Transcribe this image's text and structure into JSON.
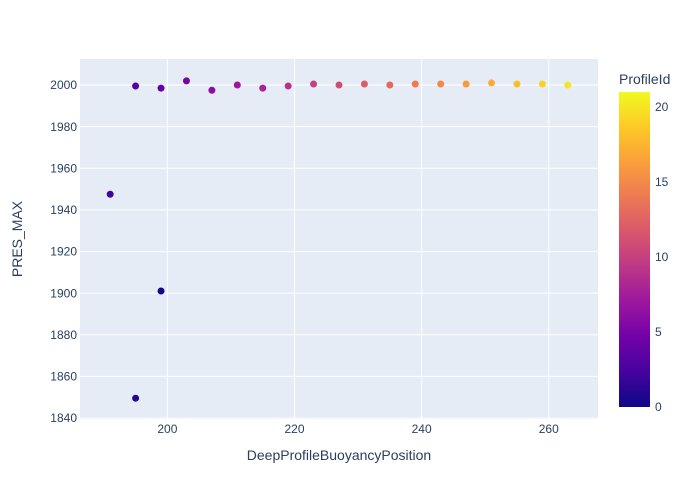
{
  "figure": {
    "background": "#ffffff",
    "plot_bgcolor": "#e5ecf6",
    "grid_color": "#ffffff",
    "font_color": "#2a3f5f"
  },
  "chart_data": {
    "type": "scatter",
    "title": "",
    "xlabel": "DeepProfileBuoyancyPosition",
    "ylabel": "PRES_MAX",
    "xlim": [
      186.25,
      267.75
    ],
    "ylim": [
      1839.5,
      2012.5
    ],
    "x_ticks": [
      200,
      220,
      240,
      260
    ],
    "y_ticks": [
      1840,
      1860,
      1880,
      1900,
      1920,
      1940,
      1960,
      1980,
      2000
    ],
    "grid": true,
    "legend_position": "colorbar-right",
    "marker_diameter_px": 7,
    "points": [
      {
        "x": 199,
        "y": 1901,
        "id": 0
      },
      {
        "x": 195,
        "y": 1849.5,
        "id": 1
      },
      {
        "x": 191,
        "y": 1947.5,
        "id": 2
      },
      {
        "x": 195,
        "y": 1999.5,
        "id": 3
      },
      {
        "x": 199,
        "y": 1998.5,
        "id": 4
      },
      {
        "x": 203,
        "y": 2002,
        "id": 5
      },
      {
        "x": 207,
        "y": 1997.5,
        "id": 6
      },
      {
        "x": 211,
        "y": 2000,
        "id": 7
      },
      {
        "x": 215,
        "y": 1998.5,
        "id": 8
      },
      {
        "x": 219,
        "y": 1999.5,
        "id": 9
      },
      {
        "x": 223,
        "y": 2000.5,
        "id": 10
      },
      {
        "x": 227,
        "y": 2000,
        "id": 11
      },
      {
        "x": 231,
        "y": 2000.5,
        "id": 12
      },
      {
        "x": 235,
        "y": 2000,
        "id": 13
      },
      {
        "x": 239,
        "y": 2000.5,
        "id": 14
      },
      {
        "x": 243,
        "y": 2000.5,
        "id": 15
      },
      {
        "x": 247,
        "y": 2000.5,
        "id": 16
      },
      {
        "x": 251,
        "y": 2001,
        "id": 17
      },
      {
        "x": 255,
        "y": 2000.5,
        "id": 18
      },
      {
        "x": 259,
        "y": 2000.5,
        "id": 19
      },
      {
        "x": 263,
        "y": 2000,
        "id": 20
      }
    ],
    "colorbar": {
      "title": "ProfileId",
      "ticks": [
        0,
        5,
        10,
        15,
        20
      ],
      "range": [
        0,
        21
      ],
      "colorscale_name": "plasma",
      "colorscale": [
        [
          0.0,
          "#0d0887"
        ],
        [
          0.1111,
          "#46039f"
        ],
        [
          0.2222,
          "#7201a8"
        ],
        [
          0.3333,
          "#9c179e"
        ],
        [
          0.4444,
          "#bd3786"
        ],
        [
          0.5556,
          "#d8576b"
        ],
        [
          0.6667,
          "#ed7953"
        ],
        [
          0.7778,
          "#fb9f3a"
        ],
        [
          0.8889,
          "#fdca26"
        ],
        [
          1.0,
          "#f0f921"
        ]
      ]
    }
  }
}
